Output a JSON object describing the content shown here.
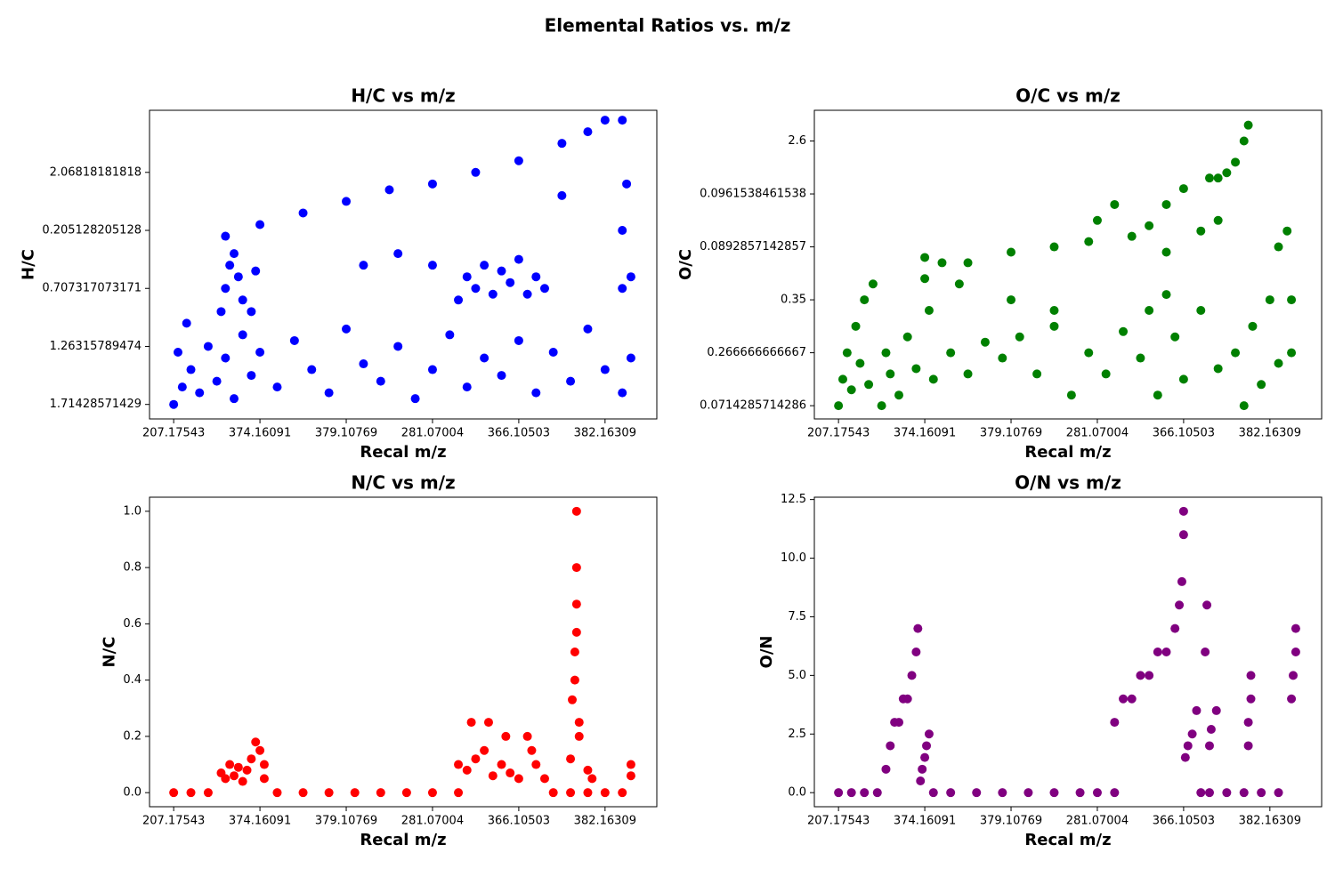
{
  "title": "Elemental Ratios vs. m/z",
  "chart_data": [
    {
      "type": "scatter",
      "title": "H/C vs m/z",
      "xlabel": "Recal m/z",
      "ylabel": "H/C",
      "color": "blue",
      "xlim": [
        -28,
        560
      ],
      "ylim": [
        -0.25,
        5.07
      ],
      "xticks": [
        {
          "value": 0,
          "label": "207.17543"
        },
        {
          "value": 100,
          "label": "374.16091"
        },
        {
          "value": 200,
          "label": "379.10769"
        },
        {
          "value": 300,
          "label": "281.07004"
        },
        {
          "value": 400,
          "label": "366.10503"
        },
        {
          "value": 500,
          "label": "382.16309"
        }
      ],
      "yticks": [
        {
          "value": 0,
          "label": "1.71428571429"
        },
        {
          "value": 1,
          "label": "1.26315789474"
        },
        {
          "value": 2,
          "label": "0.707317073171"
        },
        {
          "value": 3,
          "label": "0.205128205128"
        },
        {
          "value": 4,
          "label": "2.06818181818"
        }
      ],
      "x": [
        0,
        5,
        10,
        15,
        20,
        30,
        40,
        50,
        60,
        70,
        80,
        90,
        100,
        120,
        140,
        160,
        180,
        200,
        220,
        240,
        260,
        280,
        300,
        320,
        340,
        360,
        380,
        400,
        420,
        440,
        460,
        480,
        500,
        520,
        530,
        60,
        100,
        150,
        200,
        250,
        300,
        350,
        400,
        450,
        480,
        500,
        520,
        55,
        60,
        65,
        70,
        75,
        80,
        90,
        95,
        330,
        340,
        350,
        360,
        370,
        380,
        390,
        400,
        410,
        420,
        430,
        220,
        260,
        300,
        450,
        520,
        530,
        525,
        520
      ],
      "values": [
        0,
        0.9,
        0.3,
        1.4,
        0.6,
        0.2,
        1.0,
        0.4,
        0.8,
        0.1,
        1.2,
        0.5,
        0.9,
        0.3,
        1.1,
        0.6,
        0.2,
        1.3,
        0.7,
        0.4,
        1.0,
        0.1,
        0.6,
        1.2,
        0.3,
        0.8,
        0.5,
        1.1,
        0.2,
        0.9,
        0.4,
        1.3,
        0.6,
        0.2,
        0.8,
        2.9,
        3.1,
        3.3,
        3.5,
        3.7,
        3.8,
        4.0,
        4.2,
        4.5,
        4.7,
        4.9,
        4.9,
        1.6,
        2.0,
        2.4,
        2.6,
        2.2,
        1.8,
        1.6,
        2.3,
        1.8,
        2.2,
        2.0,
        2.4,
        1.9,
        2.3,
        2.1,
        2.5,
        1.9,
        2.2,
        2.0,
        2.4,
        2.6,
        2.4,
        3.6,
        3.0,
        2.2,
        3.8,
        2.0
      ]
    },
    {
      "type": "scatter",
      "title": "O/C vs m/z",
      "xlabel": "Recal m/z",
      "ylabel": "O/C",
      "color": "green",
      "xlim": [
        -28,
        560
      ],
      "ylim": [
        -0.25,
        5.58
      ],
      "xticks": [
        {
          "value": 0,
          "label": "207.17543"
        },
        {
          "value": 100,
          "label": "374.16091"
        },
        {
          "value": 200,
          "label": "379.10769"
        },
        {
          "value": 300,
          "label": "281.07004"
        },
        {
          "value": 400,
          "label": "366.10503"
        },
        {
          "value": 500,
          "label": "382.16309"
        }
      ],
      "yticks": [
        {
          "value": 0,
          "label": "0.0714285714286"
        },
        {
          "value": 1,
          "label": "0.266666666667"
        },
        {
          "value": 2,
          "label": "0.35"
        },
        {
          "value": 3,
          "label": "0.0892857142857"
        },
        {
          "value": 4,
          "label": "0.0961538461538"
        },
        {
          "value": 5,
          "label": "2.6"
        }
      ],
      "x": [
        0,
        5,
        10,
        15,
        20,
        25,
        30,
        35,
        40,
        50,
        55,
        60,
        70,
        80,
        90,
        100,
        105,
        110,
        130,
        150,
        170,
        190,
        210,
        230,
        250,
        270,
        290,
        310,
        330,
        350,
        360,
        370,
        380,
        390,
        400,
        420,
        440,
        460,
        470,
        480,
        490,
        500,
        510,
        525,
        525,
        100,
        120,
        150,
        200,
        250,
        290,
        300,
        320,
        340,
        360,
        380,
        400,
        420,
        430,
        440,
        450,
        460,
        470,
        475,
        440,
        380,
        200,
        250,
        140,
        510,
        520
      ],
      "values": [
        0,
        0.5,
        1.0,
        0.3,
        1.5,
        0.8,
        2.0,
        0.4,
        2.3,
        0,
        1.0,
        0.6,
        0.2,
        1.3,
        0.7,
        2.4,
        1.8,
        0.5,
        1.0,
        0.6,
        1.2,
        0.9,
        1.3,
        0.6,
        1.5,
        0.2,
        1.0,
        0.6,
        1.4,
        0.9,
        1.8,
        0.2,
        2.1,
        1.3,
        0.5,
        1.8,
        0.7,
        1.0,
        0,
        1.5,
        0.4,
        2.0,
        0.8,
        1.0,
        2.0,
        2.8,
        2.7,
        2.7,
        2.9,
        3.0,
        3.1,
        3.5,
        3.8,
        3.2,
        3.4,
        3.8,
        4.1,
        3.3,
        4.3,
        4.3,
        4.4,
        4.6,
        5.0,
        5.3,
        3.5,
        2.9,
        2.0,
        1.8,
        2.3,
        3.0,
        3.3
      ]
    },
    {
      "type": "scatter",
      "title": "N/C vs m/z",
      "xlabel": "Recal m/z",
      "ylabel": "N/C",
      "color": "red",
      "xlim": [
        -28,
        560
      ],
      "ylim": [
        -0.05,
        1.05
      ],
      "xticks": [
        {
          "value": 0,
          "label": "207.17543"
        },
        {
          "value": 100,
          "label": "374.16091"
        },
        {
          "value": 200,
          "label": "379.10769"
        },
        {
          "value": 300,
          "label": "281.07004"
        },
        {
          "value": 400,
          "label": "366.10503"
        },
        {
          "value": 500,
          "label": "382.16309"
        }
      ],
      "yticks": [
        {
          "value": 0,
          "label": "0.0"
        },
        0.2,
        0.4,
        0.6,
        0.8,
        {
          "value": 1,
          "label": "1.0"
        }
      ],
      "x": [
        0,
        20,
        40,
        120,
        150,
        180,
        210,
        240,
        270,
        300,
        330,
        440,
        460,
        480,
        500,
        520,
        55,
        60,
        65,
        70,
        75,
        80,
        85,
        90,
        95,
        100,
        105,
        105,
        330,
        340,
        345,
        350,
        360,
        365,
        370,
        380,
        385,
        390,
        400,
        410,
        415,
        420,
        430,
        460,
        462,
        465,
        465,
        467,
        467,
        467,
        467,
        470,
        470,
        480,
        485,
        530,
        530
      ],
      "values": [
        0,
        0,
        0,
        0,
        0,
        0,
        0,
        0,
        0,
        0,
        0,
        0,
        0,
        0,
        0,
        0,
        0.07,
        0.05,
        0.1,
        0.06,
        0.09,
        0.04,
        0.08,
        0.12,
        0.18,
        0.15,
        0.1,
        0.05,
        0.1,
        0.08,
        0.25,
        0.12,
        0.15,
        0.25,
        0.06,
        0.1,
        0.2,
        0.07,
        0.05,
        0.2,
        0.15,
        0.1,
        0.05,
        0.12,
        0.33,
        0.4,
        0.5,
        0.57,
        0.67,
        0.8,
        1.0,
        0.25,
        0.2,
        0.08,
        0.05,
        0.1,
        0.06
      ]
    },
    {
      "type": "scatter",
      "title": "O/N vs m/z",
      "xlabel": "Recal m/z",
      "ylabel": "O/N",
      "color": "purple",
      "xlim": [
        -28,
        560
      ],
      "ylim": [
        -0.6,
        12.6
      ],
      "xticks": [
        {
          "value": 0,
          "label": "207.17543"
        },
        {
          "value": 100,
          "label": "374.16091"
        },
        {
          "value": 200,
          "label": "379.10769"
        },
        {
          "value": 300,
          "label": "281.07004"
        },
        {
          "value": 400,
          "label": "366.10503"
        },
        {
          "value": 500,
          "label": "382.16309"
        }
      ],
      "yticks": [
        {
          "value": 0,
          "label": "0.0"
        },
        2.5,
        {
          "value": 5,
          "label": "5.0"
        },
        7.5,
        {
          "value": 10,
          "label": "10.0"
        },
        12.5
      ],
      "x": [
        0,
        15,
        30,
        45,
        110,
        130,
        160,
        190,
        220,
        250,
        280,
        300,
        320,
        430,
        450,
        470,
        490,
        510,
        55,
        60,
        65,
        70,
        75,
        80,
        85,
        90,
        92,
        95,
        97,
        100,
        102,
        105,
        320,
        330,
        340,
        350,
        360,
        370,
        380,
        390,
        395,
        398,
        400,
        400,
        402,
        405,
        410,
        415,
        420,
        425,
        427,
        430,
        432,
        438,
        475,
        475,
        478,
        478,
        525,
        527,
        530,
        530
      ],
      "values": [
        0,
        0,
        0,
        0,
        0,
        0,
        0,
        0,
        0,
        0,
        0,
        0,
        0,
        0,
        0,
        0,
        0,
        0,
        1,
        2,
        3,
        3,
        4,
        4,
        5,
        6,
        7,
        0.5,
        1,
        1.5,
        2,
        2.5,
        3,
        4,
        4,
        5,
        5,
        6,
        6,
        7,
        8,
        9,
        11,
        12,
        1.5,
        2,
        2.5,
        3.5,
        0,
        6,
        8,
        2,
        2.7,
        3.5,
        2,
        3,
        4,
        5,
        4,
        5,
        6,
        7
      ]
    }
  ]
}
